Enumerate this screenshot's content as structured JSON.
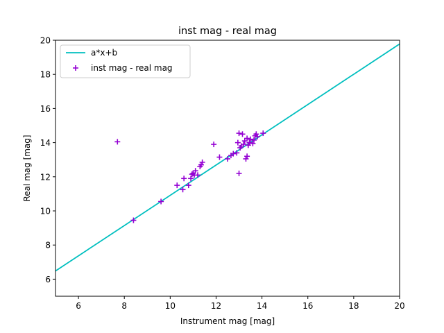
{
  "chart_data": {
    "type": "scatter",
    "title": "inst mag - real mag",
    "xlabel": "Instrument mag [mag]",
    "ylabel": "Real mag [mag]",
    "xlim": [
      5,
      20
    ],
    "ylim": [
      5,
      20
    ],
    "xticks": [
      6,
      8,
      10,
      12,
      14,
      16,
      18,
      20
    ],
    "yticks": [
      6,
      8,
      10,
      12,
      14,
      16,
      18,
      20
    ],
    "grid": false,
    "legend_position": "upper-left",
    "series": [
      {
        "name": "a*x+b",
        "kind": "line",
        "color": "#00bfbf",
        "points": [
          [
            5,
            6.48
          ],
          [
            20,
            19.78
          ]
        ]
      },
      {
        "name": "inst mag - real mag",
        "kind": "scatter",
        "marker": "plus",
        "color": "#9400d3",
        "points": [
          [
            7.7,
            14.05
          ],
          [
            8.4,
            9.45
          ],
          [
            9.6,
            10.55
          ],
          [
            10.3,
            11.5
          ],
          [
            10.55,
            11.25
          ],
          [
            10.6,
            11.9
          ],
          [
            10.8,
            11.5
          ],
          [
            10.9,
            11.9
          ],
          [
            10.95,
            12.15
          ],
          [
            11.0,
            12.2
          ],
          [
            11.05,
            12.1
          ],
          [
            11.1,
            12.35
          ],
          [
            11.2,
            12.1
          ],
          [
            11.3,
            12.6
          ],
          [
            11.35,
            12.7
          ],
          [
            11.4,
            12.85
          ],
          [
            11.9,
            13.9
          ],
          [
            12.15,
            13.15
          ],
          [
            12.5,
            13.05
          ],
          [
            12.65,
            13.25
          ],
          [
            12.75,
            13.35
          ],
          [
            12.9,
            13.4
          ],
          [
            12.95,
            14.0
          ],
          [
            13.0,
            14.55
          ],
          [
            13.0,
            12.2
          ],
          [
            13.05,
            13.7
          ],
          [
            13.1,
            13.8
          ],
          [
            13.15,
            14.5
          ],
          [
            13.2,
            13.9
          ],
          [
            13.25,
            14.1
          ],
          [
            13.3,
            13.05
          ],
          [
            13.35,
            13.2
          ],
          [
            13.35,
            14.25
          ],
          [
            13.4,
            13.85
          ],
          [
            13.45,
            14.0
          ],
          [
            13.5,
            14.2
          ],
          [
            13.6,
            13.95
          ],
          [
            13.65,
            14.15
          ],
          [
            13.7,
            14.4
          ],
          [
            13.75,
            14.5
          ],
          [
            13.8,
            14.35
          ],
          [
            14.05,
            14.55
          ]
        ]
      }
    ]
  }
}
